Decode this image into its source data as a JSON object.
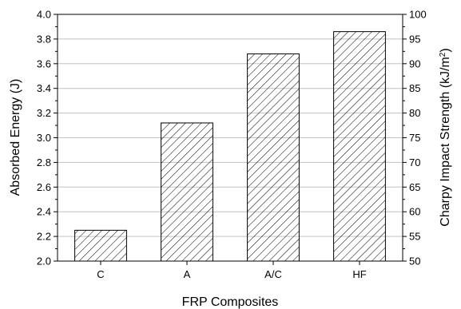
{
  "chart_data": {
    "type": "bar",
    "categories": [
      "C",
      "A",
      "A/C",
      "HF"
    ],
    "series": [
      {
        "values": [
          2.25,
          3.12,
          3.68,
          3.86
        ]
      }
    ],
    "xlabel": "FRP Composites",
    "ylabel": "Absorbed Energy (J)",
    "ylim": [
      2.0,
      4.0
    ],
    "yticks": [
      "2.0",
      "2.2",
      "2.4",
      "2.6",
      "2.8",
      "3.0",
      "3.2",
      "3.4",
      "3.6",
      "3.8",
      "4.0"
    ],
    "y2label_main": "Charpy Impact Strength (kJ/m",
    "y2label_sup": "2",
    "y2label_end": ")",
    "y2lim": [
      50,
      100
    ],
    "y2ticks": [
      "50",
      "55",
      "60",
      "65",
      "70",
      "75",
      "80",
      "85",
      "90",
      "95",
      "100"
    ],
    "grid": "horizontal",
    "bar_fill": "hatched-diagonal",
    "colors": {
      "bar_stroke": "#000000",
      "grid": "#c0c0c0",
      "axis": "#000000",
      "background": "#ffffff"
    }
  }
}
